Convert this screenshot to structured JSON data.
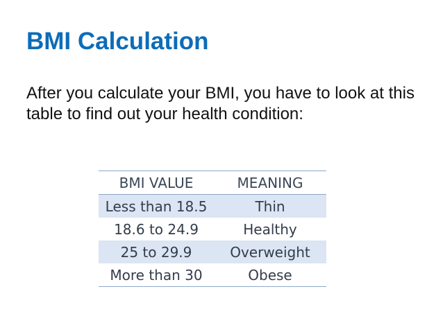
{
  "slide": {
    "title": "BMI Calculation",
    "intro": "After you calculate your BMI, you have to look at this table to find out your health condition:"
  },
  "table": {
    "headers": [
      "BMI VALUE",
      "MEANING"
    ],
    "rows": [
      [
        "Less than 18.5",
        "Thin"
      ],
      [
        "18.6 to 24.9",
        "Healthy"
      ],
      [
        "25 to 29.9",
        "Overweight"
      ],
      [
        "More than 30",
        "Obese"
      ]
    ],
    "shade_color": "#dbe5f3",
    "title_color": "#0d6cb8"
  }
}
